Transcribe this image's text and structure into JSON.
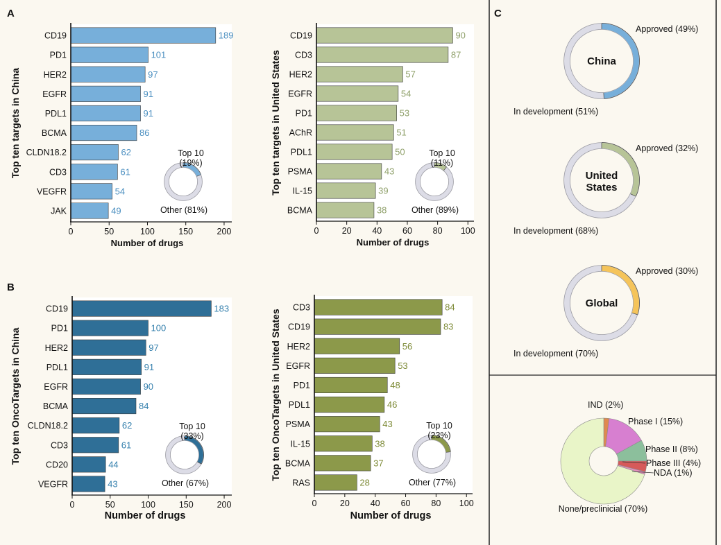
{
  "panels": {
    "A": {
      "letter": "A"
    },
    "B": {
      "letter": "B"
    },
    "C": {
      "letter": "C"
    }
  },
  "colors": {
    "china_a": "#77afda",
    "us_a": "#b7c497",
    "china_b": "#2f6f97",
    "us_b": "#8c994a",
    "ring_bg": "#dcdce6",
    "global": "#f5c45a",
    "label_china_a": "#4b8fc0",
    "label_us_a": "#8fa06a",
    "label_china_b": "#3580ad",
    "label_us_b": "#7d8a36"
  },
  "chart_data": [
    {
      "id": "a_china",
      "type": "bar",
      "orientation": "horizontal",
      "categories": [
        "CD19",
        "PD1",
        "HER2",
        "EGFR",
        "PDL1",
        "BCMA",
        "CLDN18.2",
        "CD3",
        "VEGFR",
        "JAK"
      ],
      "values": [
        189,
        101,
        97,
        91,
        91,
        86,
        62,
        61,
        54,
        49
      ],
      "xlabel": "Number of drugs",
      "ylabel": "Top ten targets in China",
      "xlim": [
        0,
        210
      ],
      "xticks": [
        0,
        50,
        100,
        150,
        200
      ],
      "inset": {
        "type": "pie",
        "slices": [
          {
            "label": "Top 10 (19%)",
            "value": 19
          },
          {
            "label": "Other (81%)",
            "value": 81
          }
        ]
      }
    },
    {
      "id": "a_us",
      "type": "bar",
      "orientation": "horizontal",
      "categories": [
        "CD19",
        "CD3",
        "HER2",
        "EGFR",
        "PD1",
        "AChR",
        "PDL1",
        "PSMA",
        "IL-15",
        "BCMA"
      ],
      "values": [
        90,
        87,
        57,
        54,
        53,
        51,
        50,
        43,
        39,
        38
      ],
      "xlabel": "Number of drugs",
      "ylabel": "Top ten targets in United States",
      "xlim": [
        0,
        104
      ],
      "xticks": [
        0,
        20,
        40,
        60,
        80,
        100
      ],
      "inset": {
        "type": "pie",
        "slices": [
          {
            "label": "Top 10 (11%)",
            "value": 11
          },
          {
            "label": "Other (89%)",
            "value": 89
          }
        ]
      }
    },
    {
      "id": "b_china",
      "type": "bar",
      "orientation": "horizontal",
      "categories": [
        "CD19",
        "PD1",
        "HER2",
        "PDL1",
        "EGFR",
        "BCMA",
        "CLDN18.2",
        "CD3",
        "CD20",
        "VEGFR"
      ],
      "values": [
        183,
        100,
        97,
        91,
        90,
        84,
        62,
        61,
        44,
        43
      ],
      "xlabel": "Number of drugs",
      "ylabel": "Top ten OncoTargets in China",
      "xlim": [
        0,
        210
      ],
      "xticks": [
        0,
        50,
        100,
        150,
        200
      ],
      "inset": {
        "type": "pie",
        "slices": [
          {
            "label": "Top 10 (33%)",
            "value": 33
          },
          {
            "label": "Other (67%)",
            "value": 67
          }
        ]
      }
    },
    {
      "id": "b_us",
      "type": "bar",
      "orientation": "horizontal",
      "categories": [
        "CD3",
        "CD19",
        "HER2",
        "EGFR",
        "PD1",
        "PDL1",
        "PSMA",
        "IL-15",
        "BCMA",
        "RAS"
      ],
      "values": [
        84,
        83,
        56,
        53,
        48,
        46,
        43,
        38,
        37,
        28
      ],
      "xlabel": "Number of drugs",
      "ylabel": "Top ten OncoTargets in United States",
      "xlim": [
        0,
        104
      ],
      "xticks": [
        0,
        20,
        40,
        60,
        80,
        100
      ],
      "inset": {
        "type": "pie",
        "slices": [
          {
            "label": "Top 10 (23%)",
            "value": 23
          },
          {
            "label": "Other (77%)",
            "value": 77
          }
        ]
      }
    },
    {
      "id": "c_china",
      "type": "pie",
      "center_label": "China",
      "slices": [
        {
          "label": "Approved (49%)",
          "value": 49
        },
        {
          "label": "In development (51%)",
          "value": 51
        }
      ]
    },
    {
      "id": "c_us",
      "type": "pie",
      "center_label": [
        "United",
        "States"
      ],
      "slices": [
        {
          "label": "Approved (32%)",
          "value": 32
        },
        {
          "label": "In development (68%)",
          "value": 68
        }
      ]
    },
    {
      "id": "c_global",
      "type": "pie",
      "center_label": "Global",
      "slices": [
        {
          "label": "Approved (30%)",
          "value": 30
        },
        {
          "label": "In development (70%)",
          "value": 70
        }
      ]
    },
    {
      "id": "c_phase",
      "type": "pie",
      "slices": [
        {
          "label": "IND (2%)",
          "value": 2,
          "color": "#e08a4e"
        },
        {
          "label": "Phase I (15%)",
          "value": 15,
          "color": "#d77fd0"
        },
        {
          "label": "Phase II (8%)",
          "value": 8,
          "color": "#8cbf9c"
        },
        {
          "label": "Phase III (4%)",
          "value": 4,
          "color": "#d65a5a"
        },
        {
          "label": "NDA (1%)",
          "value": 1,
          "color": "#e58fbd"
        },
        {
          "label": "None/preclinicial (70%)",
          "value": 70,
          "color": "#e9f5c8"
        }
      ]
    }
  ]
}
